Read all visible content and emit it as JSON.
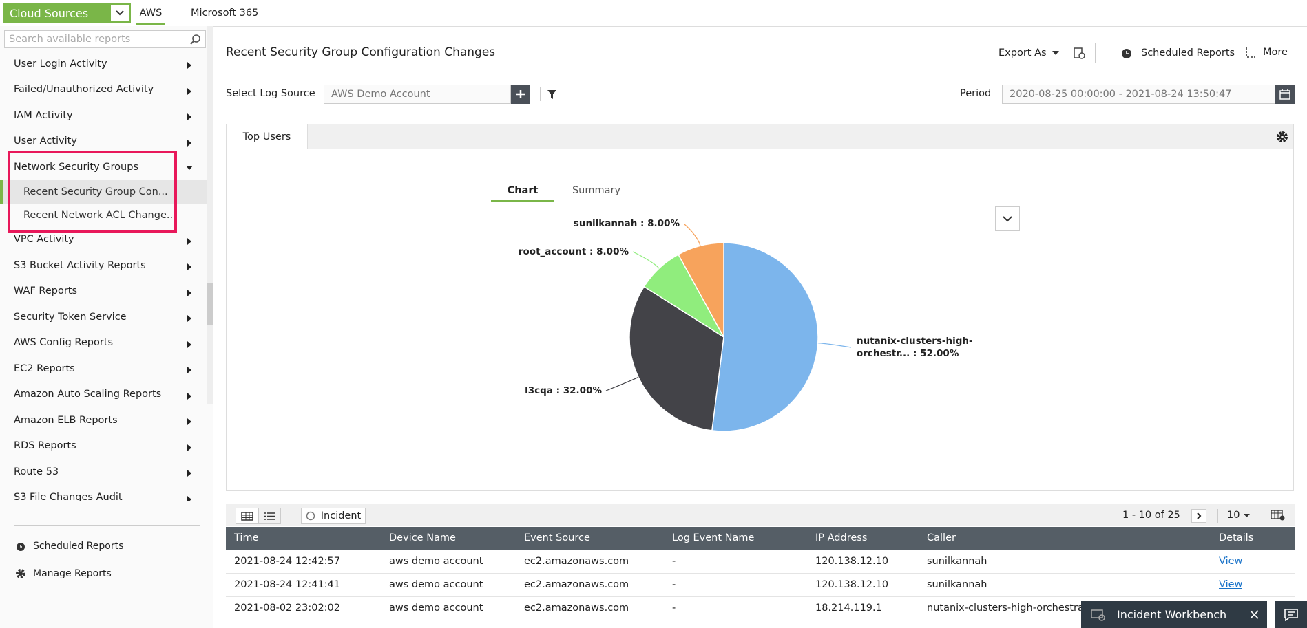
{
  "top_bar": {
    "dropdown": "Cloud Sources",
    "tabs": [
      "AWS",
      "Microsoft 365"
    ]
  },
  "sidebar": {
    "search_placeholder": "Search available reports",
    "items": [
      "User Login Activity",
      "Failed/Unauthorized Activity",
      "IAM Activity",
      "User Activity",
      "Network Security Groups",
      "VPC Activity",
      "S3 Bucket Activity Reports",
      "WAF Reports",
      "Security Token Service",
      "AWS Config Reports",
      "EC2 Reports",
      "Amazon Auto Scaling Reports",
      "Amazon ELB Reports",
      "RDS Reports",
      "Route 53",
      "S3 File Changes Audit"
    ],
    "sub_items": [
      "Recent Security Group Con...",
      "Recent Network ACL Change..."
    ],
    "footer": [
      "Scheduled Reports",
      "Manage Reports"
    ]
  },
  "header": {
    "title": "Recent Security Group Configuration Changes",
    "export": "Export As",
    "scheduled": "Scheduled Reports",
    "more": "More"
  },
  "filters": {
    "log_source_label": "Select Log Source",
    "log_source_value": "AWS Demo Account",
    "period_label": "Period",
    "period_value": "2020-08-25 00:00:00 - 2021-08-24 13:50:47"
  },
  "panel_tab": "Top Users",
  "chart_tabs": [
    "Chart",
    "Summary"
  ],
  "chart_data": {
    "type": "pie",
    "categories": [
      "nutanix-clusters-high-orchestr...",
      "l3cqa",
      "root_account",
      "sunilkannah"
    ],
    "values": [
      52,
      32,
      8,
      8
    ],
    "value_labels": [
      "52.00%",
      "32.00%",
      "8.00%",
      "8.00%"
    ],
    "label_separator": " : ",
    "colors": [
      "#7cb5ec",
      "#434348",
      "#90ed7d",
      "#f7a35c"
    ]
  },
  "table_toolbar": {
    "incident": "Incident",
    "pagination": "1 - 10 of 25",
    "page_size": "10"
  },
  "table": {
    "columns": [
      "Time",
      "Device Name",
      "Event Source",
      "Log Event Name",
      "IP Address",
      "Caller",
      "Details"
    ],
    "rows": [
      [
        "2021-08-24 12:42:57",
        "aws demo account",
        "ec2.amazonaws.com",
        "-",
        "120.138.12.10",
        "sunilkannah",
        "View"
      ],
      [
        "2021-08-24 12:41:41",
        "aws demo account",
        "ec2.amazonaws.com",
        "-",
        "120.138.12.10",
        "sunilkannah",
        "View"
      ],
      [
        "2021-08-02 23:02:02",
        "aws demo account",
        "ec2.amazonaws.com",
        "-",
        "18.214.119.1",
        "nutanix-clusters-high-orchestrat"
      ]
    ]
  },
  "overlay": {
    "workbench": "Incident Workbench"
  }
}
